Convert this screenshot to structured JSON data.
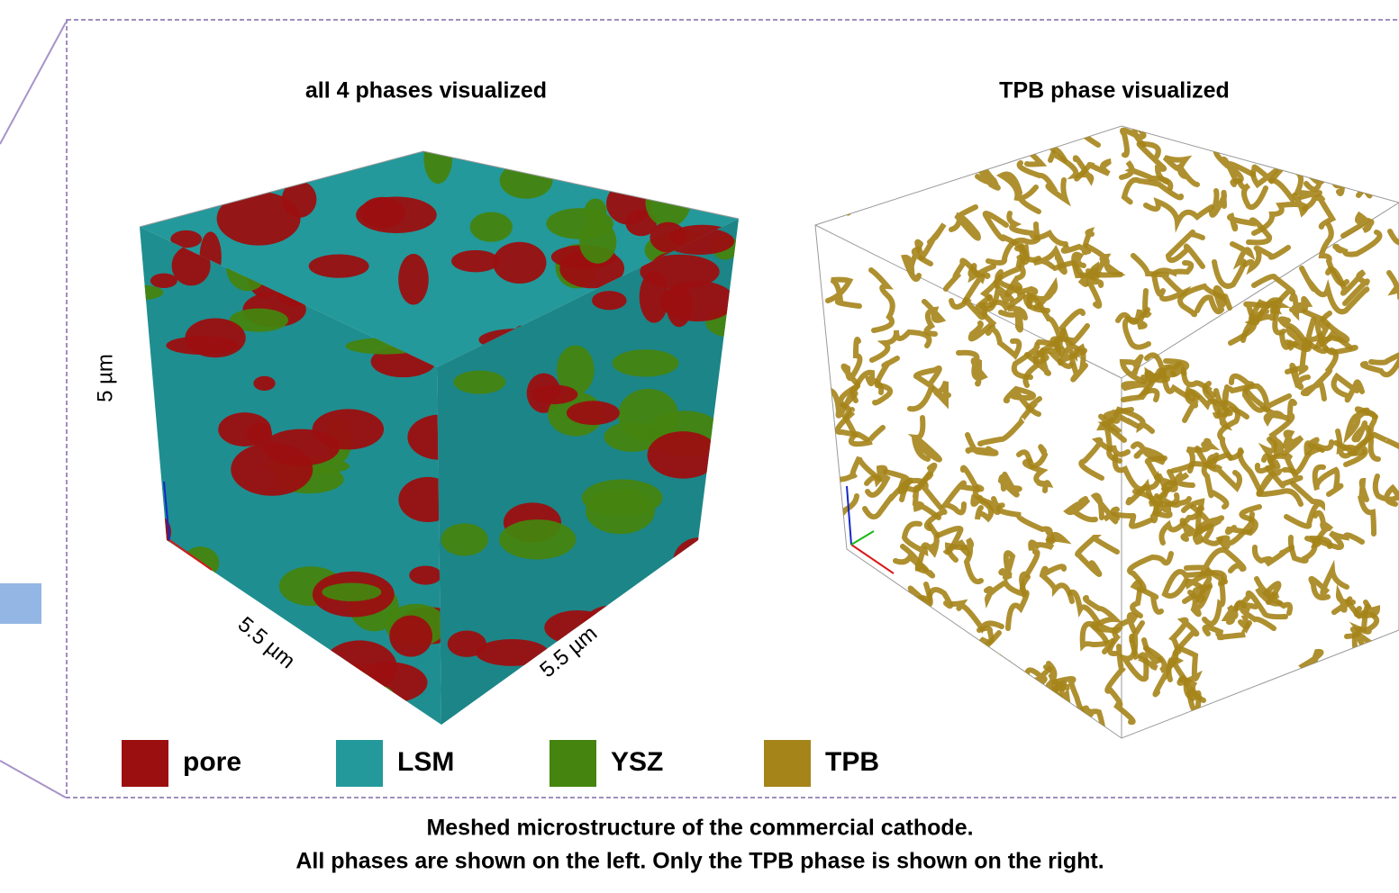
{
  "panels": [
    {
      "title": "all 4 phases visualized",
      "dimensions": [
        "5 µm",
        "5.5 µm",
        "5.5 µm"
      ]
    },
    {
      "title": "TPB phase visualized"
    }
  ],
  "legend": [
    {
      "label": "pore",
      "color": "#9c0f10"
    },
    {
      "label": "LSM",
      "color": "#23999b"
    },
    {
      "label": "YSZ",
      "color": "#45840f"
    },
    {
      "label": "TPB",
      "color": "#a5841a"
    }
  ],
  "caption": [
    "Meshed microstructure of the commercial cathode.",
    "All phases are shown on the left.  Only the TPB phase is shown on the right."
  ]
}
